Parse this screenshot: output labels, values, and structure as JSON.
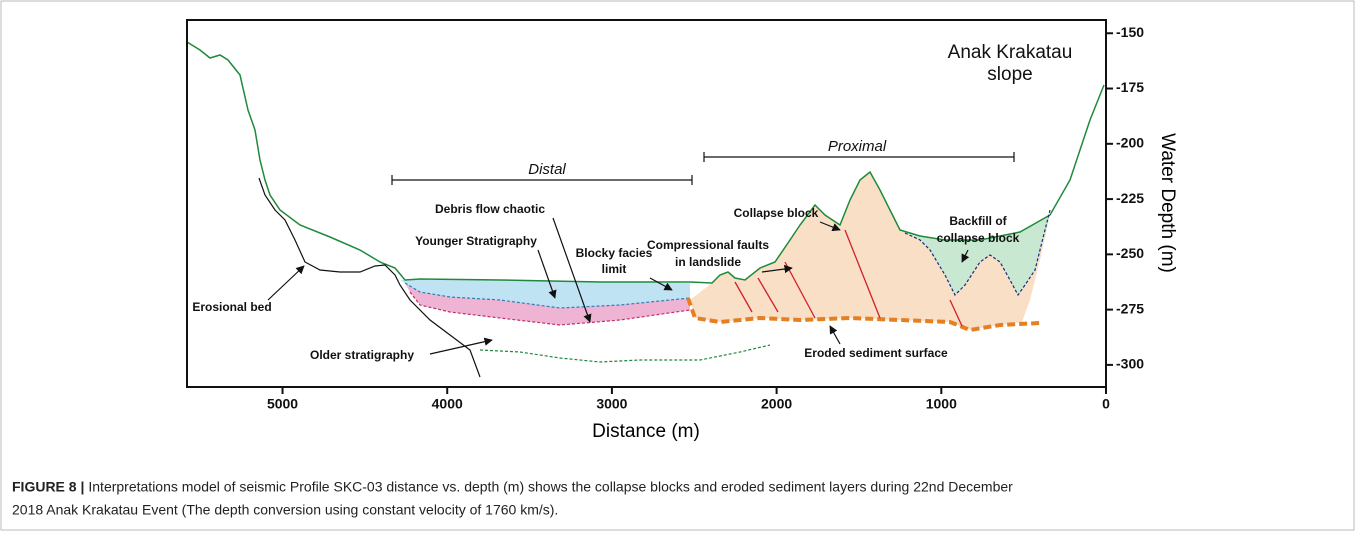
{
  "figure": {
    "annotations": [
      {
        "lines": [
          "Anak Krakatau",
          "slope"
        ]
      },
      {
        "lines": [
          "Distal"
        ]
      },
      {
        "lines": [
          "Proximal"
        ]
      },
      {
        "lines": [
          "Collapse block"
        ]
      },
      {
        "lines": [
          "Backfill of",
          "collapse block"
        ]
      },
      {
        "lines": [
          "Debris flow chaotic"
        ]
      },
      {
        "lines": [
          "Compressional faults",
          "in landslide"
        ]
      },
      {
        "lines": [
          "Younger Stratigraphy"
        ]
      },
      {
        "lines": [
          "Blocky facies",
          "limit"
        ]
      },
      {
        "lines": [
          "Erosional bed"
        ]
      },
      {
        "lines": [
          "Older stratigraphy"
        ]
      },
      {
        "lines": [
          "Eroded sediment surface"
        ]
      }
    ],
    "x_axis": {
      "label": "Distance (m)",
      "lim": [
        5580,
        0
      ],
      "ticks": [
        5000,
        4000,
        3000,
        2000,
        1000,
        0
      ]
    },
    "y_axis": {
      "label": "Water Depth (m)",
      "lim": [
        -144,
        -310
      ],
      "ticks": [
        -150,
        -175,
        -200,
        -225,
        -250,
        -275,
        -300
      ]
    }
  },
  "caption": {
    "label": "FIGURE 8 |",
    "lines": [
      "Interpretations model of seismic Profile SKC-03 distance vs. depth (m) shows the collapse blocks and eroded sediment layers during 22nd December",
      "2018 Anak Krakatau Event (The depth conversion using constant velocity of 1760 km/s)."
    ]
  }
}
